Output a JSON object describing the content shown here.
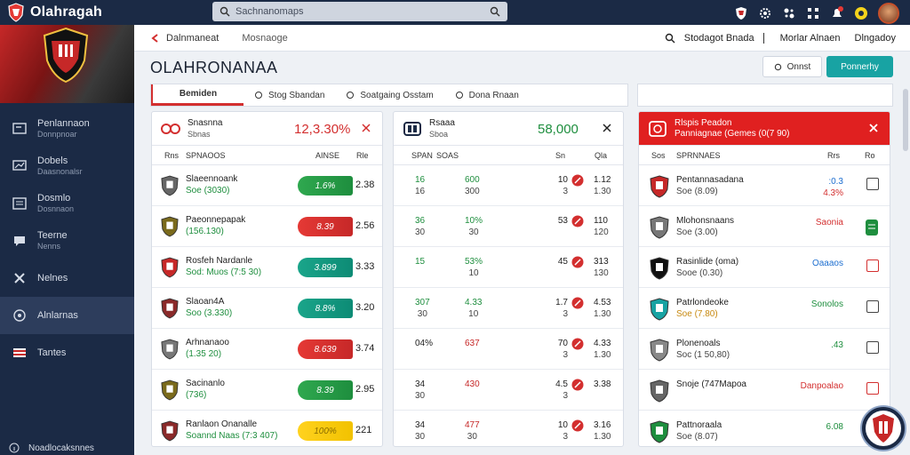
{
  "app": {
    "name": "Olahragah"
  },
  "search": {
    "placeholder": "Sachnanomaps"
  },
  "breadcrumb": {
    "current": "Dalnmaneat",
    "next": "Mosnaoge"
  },
  "header_right": {
    "item1": "Stodagot Bnada",
    "item2": "Morlar Alnaen",
    "item3": "Dlngadoy"
  },
  "page": {
    "title": "OLAHRONANAA"
  },
  "buttons": {
    "secondary": "Onnst",
    "primary": "Ponnerhy"
  },
  "tabs": [
    "Bemiden",
    "Stog Sbandan",
    "Soatgaing Osstam",
    "Dona Rnaan"
  ],
  "sidebar": {
    "items": [
      {
        "label": "Penlannaon",
        "sub": "Donnpnoar"
      },
      {
        "label": "Dobels",
        "sub": "Daasnonalsr"
      },
      {
        "label": "Dosmlo",
        "sub": "Dosnnaon"
      },
      {
        "label": "Teerne",
        "sub": "Nenns"
      },
      {
        "label": "Nelnes",
        "sub": ""
      },
      {
        "label": "Alnlarnas",
        "sub": ""
      },
      {
        "label": "Tantes",
        "sub": ""
      }
    ],
    "bottom": "Noadlocaksnnes"
  },
  "panel1": {
    "title": "Snasnna",
    "sub": "Sbnas",
    "headline": "12,3.30%",
    "cols": [
      "Rns",
      "SPNAOOS",
      "AINSE",
      "Rle"
    ],
    "rows": [
      {
        "name": "Slaeennoank",
        "sub": "Soe (3030)",
        "pill": "1.6%",
        "color": "green",
        "odd": "2.38",
        "crest": "#666"
      },
      {
        "name": "Paeonnepapak",
        "sub": "(156.130)",
        "pill": "8.39",
        "color": "red",
        "odd": "2.56",
        "crest": "#7a6a1c"
      },
      {
        "name": "Rosfeh Nardanle",
        "sub": "Sod: Muos (7:5 30)",
        "pill": "3.899",
        "color": "teal",
        "odd": "3.33",
        "crest": "#c62828"
      },
      {
        "name": "Slaoan4A",
        "sub": "Soo (3.330)",
        "pill": "8.8%",
        "color": "teal",
        "odd": "3.20",
        "crest": "#8a2a2a"
      },
      {
        "name": "Arhnanaoo",
        "sub": "(1.35 20)",
        "pill": "8.639",
        "color": "red",
        "odd": "3.74",
        "crest": "#777"
      },
      {
        "name": "Sacinanlo",
        "sub": "(736)",
        "pill": "8.39",
        "color": "green",
        "odd": "2.95",
        "crest": "#7a6a1c"
      },
      {
        "name": "Ranlaon Onanalle",
        "sub": "Soannd Naas (7:3 407)",
        "pill": "100%",
        "color": "yellow",
        "odd": "221",
        "crest": "#8a2a2a"
      }
    ]
  },
  "panel2": {
    "title": "Rsaaa",
    "sub": "Sboa",
    "headline": "58,000",
    "cols": [
      "SPAN",
      "SOAS",
      "Sn",
      "Qla"
    ],
    "rows": [
      {
        "a": "16",
        "a2": "16",
        "b": "600",
        "b2": "300",
        "c": "10",
        "c2": "3",
        "d": "1.12",
        "d2": "1.30"
      },
      {
        "a": "36",
        "a2": "30",
        "b": "10%",
        "b2": "30",
        "c": "53",
        "c2": "",
        "d": "110",
        "d2": "120"
      },
      {
        "a": "15",
        "a2": "",
        "b": "53%",
        "b2": "10",
        "c": "45",
        "c2": "",
        "d": "313",
        "d2": "130"
      },
      {
        "a": "307",
        "a2": "30",
        "b": "4.33",
        "b2": "10",
        "c": "1.7",
        "c2": "3",
        "d": "4.53",
        "d2": "1.30"
      },
      {
        "a": "04%",
        "a2": "",
        "b": "637",
        "b2": "",
        "c": "70",
        "c2": "3",
        "d": "4.33",
        "d2": "1.30"
      },
      {
        "a": "34",
        "a2": "30",
        "b": "430",
        "b2": "",
        "c": "4.5",
        "c2": "3",
        "d": "3.38",
        "d2": ""
      },
      {
        "a": "34",
        "a2": "30",
        "b": "477",
        "b2": "30",
        "c": "10",
        "c2": "3",
        "d": "3.16",
        "d2": "1.30"
      }
    ]
  },
  "panel3": {
    "title": "Rlspis Peadon",
    "sub": "Panniagnae (Gemes (0(7 90)",
    "cols": [
      "Sos",
      "SPRNNAES",
      "Rrs",
      "Ro"
    ],
    "rows": [
      {
        "name": "Pentannasadana",
        "sub": "Soe (8.09)",
        "val": ":0.3",
        "val2": "4.3%",
        "vcolor": "blue",
        "chk": "plain",
        "crest": "#c62828"
      },
      {
        "name": "Mlohonsnaans",
        "sub": "Soe (3.00)",
        "val": "Saonia",
        "val2": "",
        "vcolor": "red",
        "chk": "green",
        "crest": "#777"
      },
      {
        "name": "Rasinlide (oma)",
        "sub": "Sooe (0.30)",
        "val": "Oaaaos",
        "val2": "",
        "vcolor": "blue",
        "chk": "red",
        "crest": "#111"
      },
      {
        "name": "Patrlondeoke",
        "sub": "Soe (7.80)",
        "val": "Sonolos",
        "val2": "",
        "vcolor": "green",
        "chk": "plain",
        "crest": "#18a3a3"
      },
      {
        "name": "Plonenoals",
        "sub": "Soc (1 50,80)",
        "val": ".43",
        "val2": "",
        "vcolor": "green",
        "chk": "plain",
        "crest": "#888"
      },
      {
        "name": "Snoje (747Mapoa",
        "sub": "",
        "val": "Danpoalao",
        "val2": "",
        "vcolor": "red",
        "chk": "red",
        "crest": "#666"
      },
      {
        "name": "Pattnoraala",
        "sub": "Soe (8.07)",
        "val": "6.08",
        "val2": "",
        "vcolor": "green",
        "chk": "",
        "crest": "#1e8e3e"
      }
    ]
  },
  "colors": {
    "navy": "#1b2a45",
    "accent_red": "#e02020",
    "teal": "#18a3a3",
    "green": "#1e8e3e"
  }
}
